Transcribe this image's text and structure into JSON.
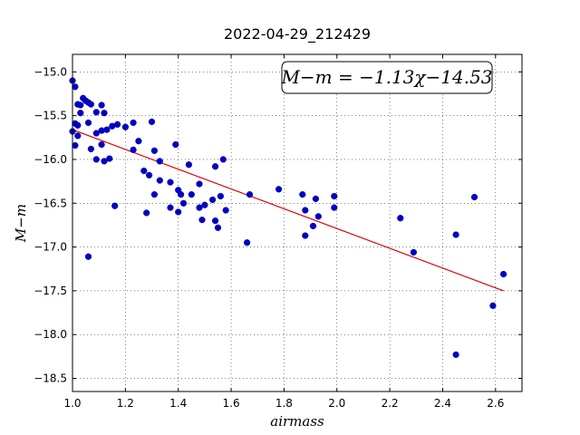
{
  "chart_data": {
    "type": "scatter",
    "title": "2022-04-29_212429",
    "xlabel": "airmass",
    "ylabel": "M−m",
    "xlim": [
      1.0,
      2.7
    ],
    "ylim": [
      -18.65,
      -14.8
    ],
    "y_inverted": true,
    "grid": true,
    "x_ticks": [
      1.0,
      1.2,
      1.4,
      1.6,
      1.8,
      2.0,
      2.2,
      2.4,
      2.6
    ],
    "x_tick_labels": [
      "1.0",
      "1.2",
      "1.4",
      "1.6",
      "1.8",
      "2.0",
      "2.2",
      "2.4",
      "2.6"
    ],
    "y_ticks": [
      -15.0,
      -15.5,
      -16.0,
      -16.5,
      -17.0,
      -17.5,
      -18.0,
      -18.5
    ],
    "y_tick_labels": [
      "−15.0",
      "−15.5",
      "−16.0",
      "−16.5",
      "−17.0",
      "−17.5",
      "−18.0",
      "−18.5"
    ],
    "annotation": "M−m = −1.13χ−14.53",
    "series": [
      {
        "type": "scatter",
        "color": "#0000cc",
        "points": [
          [
            1.0,
            -15.1
          ],
          [
            1.01,
            -15.17
          ],
          [
            1.02,
            -15.37
          ],
          [
            1.03,
            -15.38
          ],
          [
            1.04,
            -15.3
          ],
          [
            1.05,
            -15.33
          ],
          [
            1.06,
            -15.35
          ],
          [
            1.07,
            -15.37
          ],
          [
            1.09,
            -15.46
          ],
          [
            1.11,
            -15.38
          ],
          [
            1.12,
            -15.47
          ],
          [
            1.03,
            -15.47
          ],
          [
            1.01,
            -15.59
          ],
          [
            1.02,
            -15.61
          ],
          [
            1.0,
            -15.68
          ],
          [
            1.02,
            -15.73
          ],
          [
            1.06,
            -15.58
          ],
          [
            1.09,
            -15.7
          ],
          [
            1.11,
            -15.67
          ],
          [
            1.13,
            -15.66
          ],
          [
            1.15,
            -15.62
          ],
          [
            1.17,
            -15.6
          ],
          [
            1.2,
            -15.63
          ],
          [
            1.23,
            -15.58
          ],
          [
            1.3,
            -15.57
          ],
          [
            1.01,
            -15.84
          ],
          [
            1.07,
            -15.88
          ],
          [
            1.11,
            -15.83
          ],
          [
            1.25,
            -15.79
          ],
          [
            1.23,
            -15.89
          ],
          [
            1.09,
            -16.0
          ],
          [
            1.12,
            -16.02
          ],
          [
            1.14,
            -15.99
          ],
          [
            1.31,
            -15.9
          ],
          [
            1.33,
            -16.02
          ],
          [
            1.27,
            -16.13
          ],
          [
            1.29,
            -16.18
          ],
          [
            1.39,
            -15.83
          ],
          [
            1.44,
            -16.06
          ],
          [
            1.33,
            -16.24
          ],
          [
            1.37,
            -16.26
          ],
          [
            1.31,
            -16.4
          ],
          [
            1.4,
            -16.35
          ],
          [
            1.41,
            -16.4
          ],
          [
            1.45,
            -16.4
          ],
          [
            1.48,
            -16.28
          ],
          [
            1.54,
            -16.08
          ],
          [
            1.57,
            -16.0
          ],
          [
            1.56,
            -16.42
          ],
          [
            1.53,
            -16.46
          ],
          [
            1.48,
            -16.55
          ],
          [
            1.42,
            -16.5
          ],
          [
            1.37,
            -16.55
          ],
          [
            1.4,
            -16.6
          ],
          [
            1.28,
            -16.61
          ],
          [
            1.16,
            -16.53
          ],
          [
            1.5,
            -16.52
          ],
          [
            1.49,
            -16.69
          ],
          [
            1.54,
            -16.7
          ],
          [
            1.55,
            -16.78
          ],
          [
            1.58,
            -16.58
          ],
          [
            1.06,
            -17.11
          ],
          [
            1.66,
            -16.95
          ],
          [
            1.67,
            -16.4
          ],
          [
            1.78,
            -16.34
          ],
          [
            1.87,
            -16.4
          ],
          [
            1.92,
            -16.45
          ],
          [
            1.88,
            -16.58
          ],
          [
            1.93,
            -16.65
          ],
          [
            1.91,
            -16.76
          ],
          [
            1.88,
            -16.87
          ],
          [
            1.99,
            -16.42
          ],
          [
            1.99,
            -16.55
          ],
          [
            2.24,
            -16.67
          ],
          [
            2.29,
            -17.06
          ],
          [
            2.45,
            -16.86
          ],
          [
            2.52,
            -16.43
          ],
          [
            2.63,
            -17.31
          ],
          [
            2.59,
            -17.67
          ],
          [
            2.45,
            -18.23
          ]
        ]
      },
      {
        "type": "line",
        "color": "#dd0000",
        "points": [
          [
            1.0,
            -15.66
          ],
          [
            2.63,
            -17.5
          ]
        ]
      }
    ]
  }
}
